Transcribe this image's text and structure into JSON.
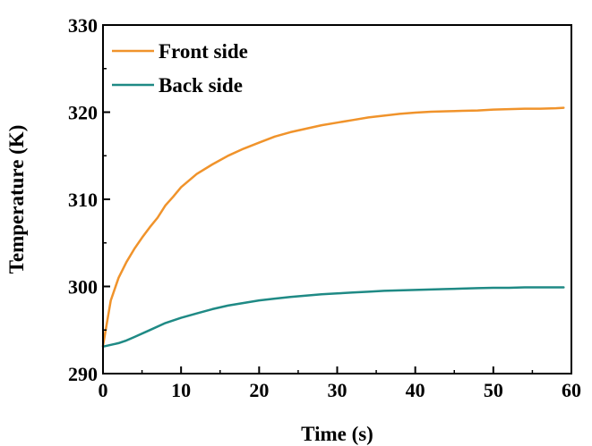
{
  "chart_data": {
    "type": "line",
    "xlabel": "Time (s)",
    "ylabel": "Temperature (K)",
    "xlim": [
      0,
      60
    ],
    "ylim": [
      290,
      330
    ],
    "xticks": [
      0,
      10,
      20,
      30,
      40,
      50,
      60
    ],
    "yticks": [
      290,
      300,
      310,
      320,
      330
    ],
    "grid": false,
    "legend_position": "top-left",
    "series": [
      {
        "name": "Front side",
        "color": "#f0932b",
        "x": [
          0,
          1,
          2,
          3,
          4,
          5,
          6,
          7,
          8,
          9,
          10,
          12,
          14,
          16,
          18,
          20,
          22,
          24,
          26,
          28,
          30,
          32,
          34,
          36,
          38,
          40,
          42,
          44,
          46,
          48,
          50,
          52,
          54,
          56,
          58,
          59
        ],
        "values": [
          293.2,
          298.4,
          301.0,
          302.8,
          304.3,
          305.6,
          306.8,
          307.9,
          309.3,
          310.3,
          311.4,
          312.9,
          314.0,
          315.0,
          315.8,
          316.5,
          317.2,
          317.7,
          318.1,
          318.5,
          318.8,
          319.1,
          319.4,
          319.6,
          319.8,
          319.95,
          320.05,
          320.1,
          320.15,
          320.2,
          320.3,
          320.35,
          320.4,
          320.4,
          320.45,
          320.5
        ]
      },
      {
        "name": "Back side",
        "color": "#1f8a85",
        "x": [
          0,
          2,
          3,
          4,
          6,
          8,
          10,
          12,
          14,
          16,
          18,
          20,
          22,
          24,
          26,
          28,
          30,
          32,
          34,
          36,
          38,
          40,
          42,
          44,
          46,
          48,
          50,
          52,
          54,
          56,
          58,
          59
        ],
        "values": [
          293.1,
          293.5,
          293.8,
          294.2,
          295.0,
          295.8,
          296.4,
          296.9,
          297.4,
          297.8,
          298.1,
          298.4,
          298.6,
          298.8,
          298.95,
          299.1,
          299.2,
          299.3,
          299.4,
          299.5,
          299.55,
          299.6,
          299.65,
          299.7,
          299.75,
          299.8,
          299.85,
          299.85,
          299.9,
          299.9,
          299.9,
          299.9
        ]
      }
    ]
  }
}
